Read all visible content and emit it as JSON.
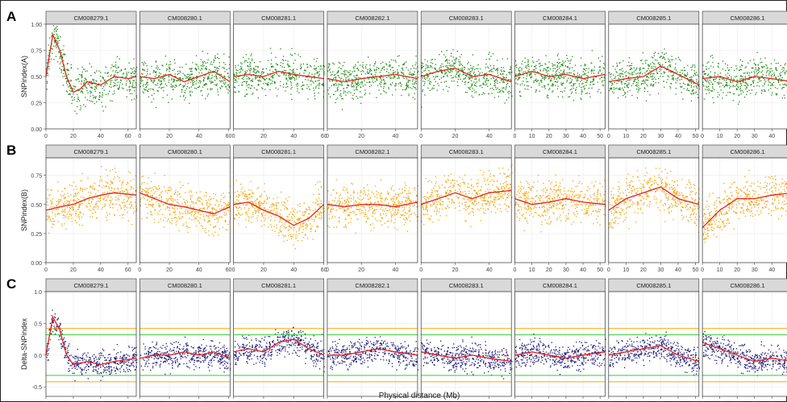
{
  "panels": [
    {
      "letter": "A",
      "ylabel": "SNPindex(A)",
      "color": "#1f8a12"
    },
    {
      "letter": "B",
      "ylabel": "SNPindex(B)",
      "color": "#f5a300"
    },
    {
      "letter": "C",
      "ylabel": "Delta-SNPindex",
      "color": "#1a1a7a"
    }
  ],
  "chromosomes": [
    "CM008279.1",
    "CM008280.1",
    "CM008281.1",
    "CM008282.1",
    "CM008283.1",
    "CM008284.1",
    "CM008285.1",
    "CM008286.1"
  ],
  "xlabel": "Physical distance (Mb)",
  "colors": {
    "smooth": "#e8221c",
    "threshold_inner": "#33cc33",
    "threshold_outer": "#ffa500",
    "strip_bg": "#d9d9d9",
    "panel_border": "#333333",
    "grid": "#ebebeb"
  },
  "chart_data": [
    {
      "type": "scatter",
      "title": "",
      "ylabel": "SNPindex(A)",
      "ylim": [
        0,
        1.0
      ],
      "yticks": [
        "0.00",
        "0.25",
        "0.50",
        "0.75",
        "1.00"
      ],
      "facets": [
        {
          "chromosome": "CM008279.1",
          "xlim": [
            0,
            66
          ],
          "xticks": [
            "0",
            "20",
            "40",
            "60"
          ],
          "smooth": [
            [
              0,
              0.5
            ],
            [
              5,
              0.9
            ],
            [
              10,
              0.75
            ],
            [
              15,
              0.5
            ],
            [
              20,
              0.35
            ],
            [
              25,
              0.38
            ],
            [
              30,
              0.45
            ],
            [
              40,
              0.42
            ],
            [
              50,
              0.5
            ],
            [
              60,
              0.48
            ],
            [
              66,
              0.5
            ]
          ]
        },
        {
          "chromosome": "CM008280.1",
          "xlim": [
            0,
            61
          ],
          "xticks": [
            "0",
            "20",
            "40",
            "60"
          ],
          "smooth": [
            [
              0,
              0.5
            ],
            [
              10,
              0.48
            ],
            [
              20,
              0.52
            ],
            [
              30,
              0.45
            ],
            [
              40,
              0.5
            ],
            [
              50,
              0.55
            ],
            [
              61,
              0.45
            ]
          ]
        },
        {
          "chromosome": "CM008281.1",
          "xlim": [
            0,
            60
          ],
          "xticks": [
            "0",
            "20",
            "40",
            "60"
          ],
          "smooth": [
            [
              0,
              0.5
            ],
            [
              10,
              0.52
            ],
            [
              20,
              0.5
            ],
            [
              30,
              0.55
            ],
            [
              40,
              0.52
            ],
            [
              50,
              0.5
            ],
            [
              60,
              0.48
            ]
          ]
        },
        {
          "chromosome": "CM008282.1",
          "xlim": [
            0,
            53
          ],
          "xticks": [
            "0",
            "20",
            "40"
          ],
          "smooth": [
            [
              0,
              0.48
            ],
            [
              10,
              0.45
            ],
            [
              20,
              0.48
            ],
            [
              30,
              0.5
            ],
            [
              40,
              0.52
            ],
            [
              53,
              0.48
            ]
          ]
        },
        {
          "chromosome": "CM008283.1",
          "xlim": [
            0,
            53
          ],
          "xticks": [
            "0",
            "20",
            "40"
          ],
          "smooth": [
            [
              0,
              0.5
            ],
            [
              10,
              0.55
            ],
            [
              20,
              0.58
            ],
            [
              30,
              0.5
            ],
            [
              40,
              0.52
            ],
            [
              53,
              0.45
            ]
          ]
        },
        {
          "chromosome": "CM008284.1",
          "xlim": [
            0,
            53
          ],
          "xticks": [
            "0",
            "10",
            "20",
            "30",
            "40",
            "50"
          ],
          "smooth": [
            [
              0,
              0.5
            ],
            [
              10,
              0.55
            ],
            [
              20,
              0.5
            ],
            [
              30,
              0.52
            ],
            [
              40,
              0.48
            ],
            [
              53,
              0.52
            ]
          ]
        },
        {
          "chromosome": "CM008285.1",
          "xlim": [
            0,
            52
          ],
          "xticks": [
            "0",
            "10",
            "20",
            "30",
            "40",
            "50"
          ],
          "smooth": [
            [
              0,
              0.45
            ],
            [
              10,
              0.48
            ],
            [
              20,
              0.5
            ],
            [
              30,
              0.6
            ],
            [
              40,
              0.52
            ],
            [
              52,
              0.42
            ]
          ]
        },
        {
          "chromosome": "CM008286.1",
          "xlim": [
            0,
            52
          ],
          "xticks": [
            "0",
            "10",
            "20",
            "30",
            "40",
            "50"
          ],
          "smooth": [
            [
              0,
              0.48
            ],
            [
              10,
              0.5
            ],
            [
              20,
              0.45
            ],
            [
              30,
              0.5
            ],
            [
              40,
              0.48
            ],
            [
              52,
              0.45
            ]
          ]
        }
      ]
    },
    {
      "type": "scatter",
      "title": "",
      "ylabel": "SNPindex(B)",
      "ylim": [
        0,
        0.9
      ],
      "yticks": [
        "0.00",
        "0.25",
        "0.50",
        "0.75"
      ],
      "facets": [
        {
          "chromosome": "CM008279.1",
          "xlim": [
            0,
            66
          ],
          "xticks": [
            "0",
            "20",
            "40",
            "60"
          ],
          "smooth": [
            [
              0,
              0.45
            ],
            [
              10,
              0.48
            ],
            [
              20,
              0.5
            ],
            [
              30,
              0.55
            ],
            [
              40,
              0.58
            ],
            [
              50,
              0.6
            ],
            [
              66,
              0.58
            ]
          ]
        },
        {
          "chromosome": "CM008280.1",
          "xlim": [
            0,
            61
          ],
          "xticks": [
            "0",
            "20",
            "40",
            "60"
          ],
          "smooth": [
            [
              0,
              0.6
            ],
            [
              10,
              0.55
            ],
            [
              20,
              0.5
            ],
            [
              30,
              0.48
            ],
            [
              40,
              0.45
            ],
            [
              50,
              0.42
            ],
            [
              61,
              0.48
            ]
          ]
        },
        {
          "chromosome": "CM008281.1",
          "xlim": [
            0,
            60
          ],
          "xticks": [
            "0",
            "20",
            "40",
            "60"
          ],
          "smooth": [
            [
              0,
              0.5
            ],
            [
              10,
              0.52
            ],
            [
              20,
              0.45
            ],
            [
              30,
              0.4
            ],
            [
              40,
              0.32
            ],
            [
              50,
              0.38
            ],
            [
              60,
              0.5
            ]
          ]
        },
        {
          "chromosome": "CM008282.1",
          "xlim": [
            0,
            53
          ],
          "xticks": [
            "0",
            "20",
            "40"
          ],
          "smooth": [
            [
              0,
              0.5
            ],
            [
              10,
              0.48
            ],
            [
              20,
              0.5
            ],
            [
              30,
              0.5
            ],
            [
              40,
              0.48
            ],
            [
              53,
              0.52
            ]
          ]
        },
        {
          "chromosome": "CM008283.1",
          "xlim": [
            0,
            53
          ],
          "xticks": [
            "0",
            "20",
            "40"
          ],
          "smooth": [
            [
              0,
              0.5
            ],
            [
              10,
              0.55
            ],
            [
              20,
              0.6
            ],
            [
              30,
              0.55
            ],
            [
              40,
              0.6
            ],
            [
              53,
              0.62
            ]
          ]
        },
        {
          "chromosome": "CM008284.1",
          "xlim": [
            0,
            53
          ],
          "xticks": [
            "0",
            "10",
            "20",
            "30",
            "40",
            "50"
          ],
          "smooth": [
            [
              0,
              0.55
            ],
            [
              10,
              0.5
            ],
            [
              20,
              0.52
            ],
            [
              30,
              0.55
            ],
            [
              40,
              0.52
            ],
            [
              53,
              0.5
            ]
          ]
        },
        {
          "chromosome": "CM008285.1",
          "xlim": [
            0,
            52
          ],
          "xticks": [
            "0",
            "10",
            "20",
            "30",
            "40",
            "50"
          ],
          "smooth": [
            [
              0,
              0.45
            ],
            [
              10,
              0.55
            ],
            [
              20,
              0.6
            ],
            [
              30,
              0.65
            ],
            [
              40,
              0.55
            ],
            [
              52,
              0.5
            ]
          ]
        },
        {
          "chromosome": "CM008286.1",
          "xlim": [
            0,
            52
          ],
          "xticks": [
            "0",
            "10",
            "20",
            "30",
            "40",
            "50"
          ],
          "smooth": [
            [
              0,
              0.3
            ],
            [
              10,
              0.45
            ],
            [
              20,
              0.55
            ],
            [
              30,
              0.55
            ],
            [
              40,
              0.58
            ],
            [
              52,
              0.6
            ]
          ]
        }
      ]
    },
    {
      "type": "scatter",
      "title": "",
      "ylabel": "Delta-SNPindex",
      "ylim": [
        -0.65,
        1.0
      ],
      "yticks": [
        "-0.5",
        "0.0",
        "0.5",
        "1.0"
      ],
      "thresholds": {
        "inner": 0.32,
        "outer": 0.42
      },
      "facets": [
        {
          "chromosome": "CM008279.1",
          "xlim": [
            0,
            66
          ],
          "xticks": [
            "0",
            "20",
            "40",
            "60"
          ],
          "smooth": [
            [
              0,
              0.0
            ],
            [
              5,
              0.6
            ],
            [
              10,
              0.4
            ],
            [
              15,
              0.0
            ],
            [
              20,
              -0.15
            ],
            [
              30,
              -0.1
            ],
            [
              40,
              -0.15
            ],
            [
              50,
              -0.1
            ],
            [
              66,
              -0.05
            ]
          ]
        },
        {
          "chromosome": "CM008280.1",
          "xlim": [
            0,
            61
          ],
          "xticks": [
            "0",
            "20",
            "40",
            "60"
          ],
          "smooth": [
            [
              0,
              -0.05
            ],
            [
              10,
              0.0
            ],
            [
              20,
              0.0
            ],
            [
              30,
              0.05
            ],
            [
              40,
              0.0
            ],
            [
              50,
              0.05
            ],
            [
              61,
              -0.05
            ]
          ]
        },
        {
          "chromosome": "CM008281.1",
          "xlim": [
            0,
            60
          ],
          "xticks": [
            "0",
            "20",
            "40",
            "60"
          ],
          "smooth": [
            [
              0,
              0.05
            ],
            [
              10,
              0.1
            ],
            [
              20,
              0.05
            ],
            [
              30,
              0.2
            ],
            [
              40,
              0.25
            ],
            [
              50,
              0.1
            ],
            [
              60,
              0.0
            ]
          ]
        },
        {
          "chromosome": "CM008282.1",
          "xlim": [
            0,
            53
          ],
          "xticks": [
            "0",
            "20",
            "40"
          ],
          "smooth": [
            [
              0,
              0.0
            ],
            [
              10,
              0.0
            ],
            [
              20,
              0.05
            ],
            [
              30,
              0.1
            ],
            [
              40,
              0.05
            ],
            [
              53,
              0.0
            ]
          ]
        },
        {
          "chromosome": "CM008283.1",
          "xlim": [
            0,
            53
          ],
          "xticks": [
            "0",
            "20",
            "40"
          ],
          "smooth": [
            [
              0,
              0.05
            ],
            [
              10,
              0.0
            ],
            [
              20,
              -0.05
            ],
            [
              30,
              0.0
            ],
            [
              40,
              -0.05
            ],
            [
              53,
              -0.1
            ]
          ]
        },
        {
          "chromosome": "CM008284.1",
          "xlim": [
            0,
            53
          ],
          "xticks": [
            "0",
            "10",
            "20",
            "30",
            "40",
            "50"
          ],
          "smooth": [
            [
              0,
              0.0
            ],
            [
              10,
              0.05
            ],
            [
              20,
              0.0
            ],
            [
              30,
              -0.05
            ],
            [
              40,
              0.0
            ],
            [
              53,
              0.05
            ]
          ]
        },
        {
          "chromosome": "CM008285.1",
          "xlim": [
            0,
            52
          ],
          "xticks": [
            "0",
            "10",
            "20",
            "30",
            "40",
            "50"
          ],
          "smooth": [
            [
              0,
              0.0
            ],
            [
              10,
              0.05
            ],
            [
              20,
              0.1
            ],
            [
              30,
              0.15
            ],
            [
              40,
              0.0
            ],
            [
              52,
              -0.1
            ]
          ]
        },
        {
          "chromosome": "CM008286.1",
          "xlim": [
            0,
            52
          ],
          "xticks": [
            "0",
            "10",
            "20",
            "30",
            "40",
            "50"
          ],
          "smooth": [
            [
              0,
              0.2
            ],
            [
              10,
              0.1
            ],
            [
              20,
              0.0
            ],
            [
              30,
              -0.1
            ],
            [
              40,
              -0.05
            ],
            [
              52,
              -0.1
            ]
          ]
        }
      ]
    }
  ]
}
